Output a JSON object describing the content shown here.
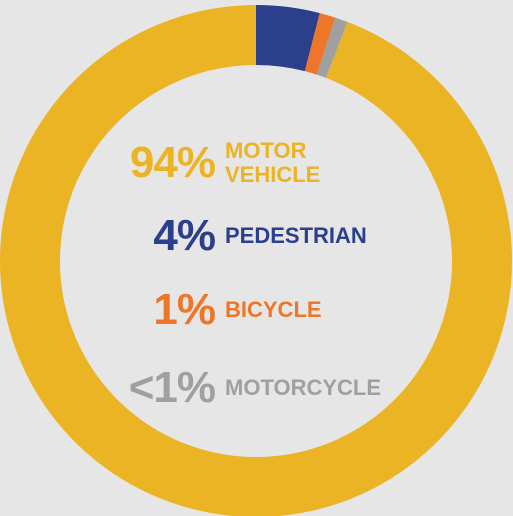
{
  "chart_data": {
    "type": "donut",
    "categories": [
      "MOTOR VEHICLE",
      "PEDESTRIAN",
      "BICYCLE",
      "MOTORCYCLE"
    ],
    "values": [
      94,
      4,
      1,
      0.8
    ],
    "value_labels": [
      "94%",
      "4%",
      "1%",
      "<1%"
    ],
    "colors": [
      "#ebb424",
      "#2b3f8c",
      "#ee7628",
      "#a0a0a0"
    ]
  }
}
